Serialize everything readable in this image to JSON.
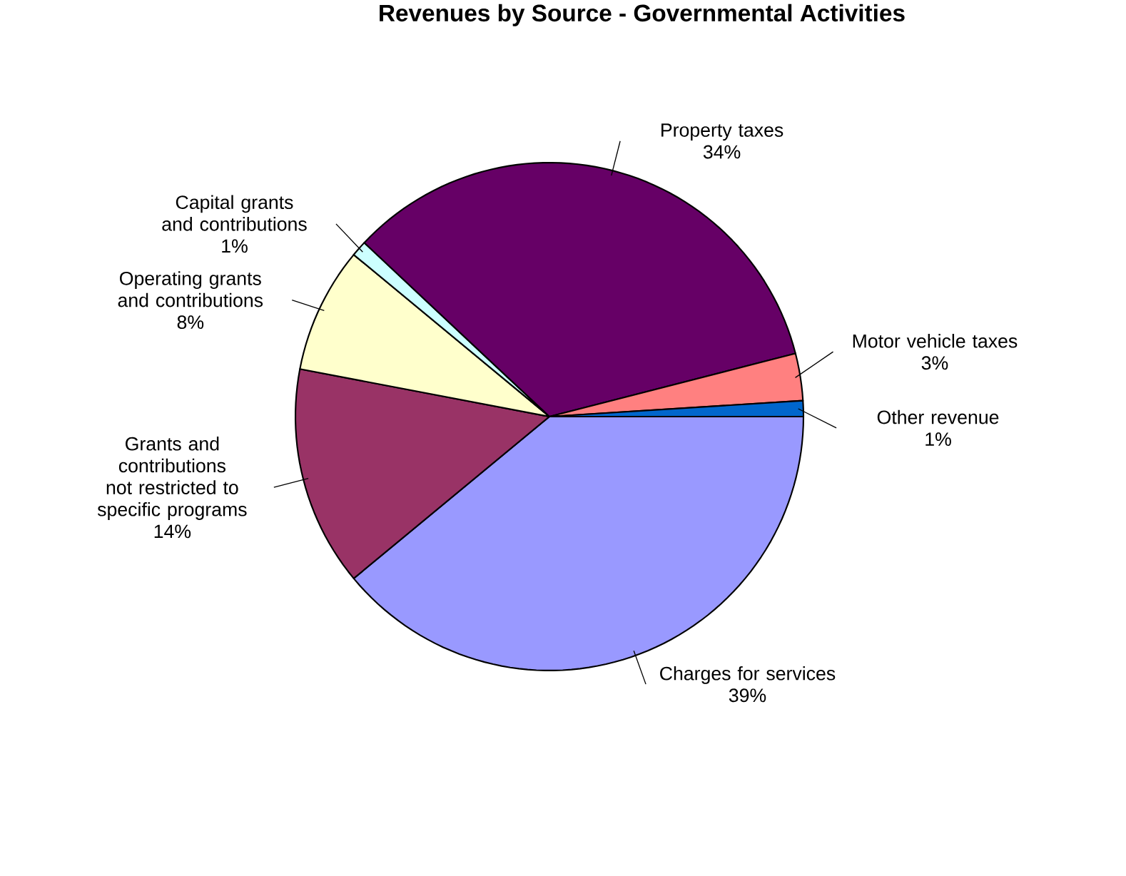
{
  "chart_data": {
    "type": "pie",
    "title": "Revenues by Source - Governmental Activities",
    "categories": [
      "Charges for services",
      "Grants and contributions not restricted to specific programs",
      "Operating grants and contributions",
      "Capital grants and contributions",
      "Property taxes",
      "Motor vehicle taxes",
      "Other revenue"
    ],
    "values": [
      39,
      14,
      8,
      1,
      34,
      3,
      1
    ],
    "value_labels": [
      "39%",
      "14%",
      "8%",
      "1%",
      "34%",
      "3%",
      "1%"
    ],
    "colors": [
      "#9999ff",
      "#993366",
      "#ffffcc",
      "#ccffff",
      "#660066",
      "#ff8080",
      "#0066cc"
    ]
  }
}
